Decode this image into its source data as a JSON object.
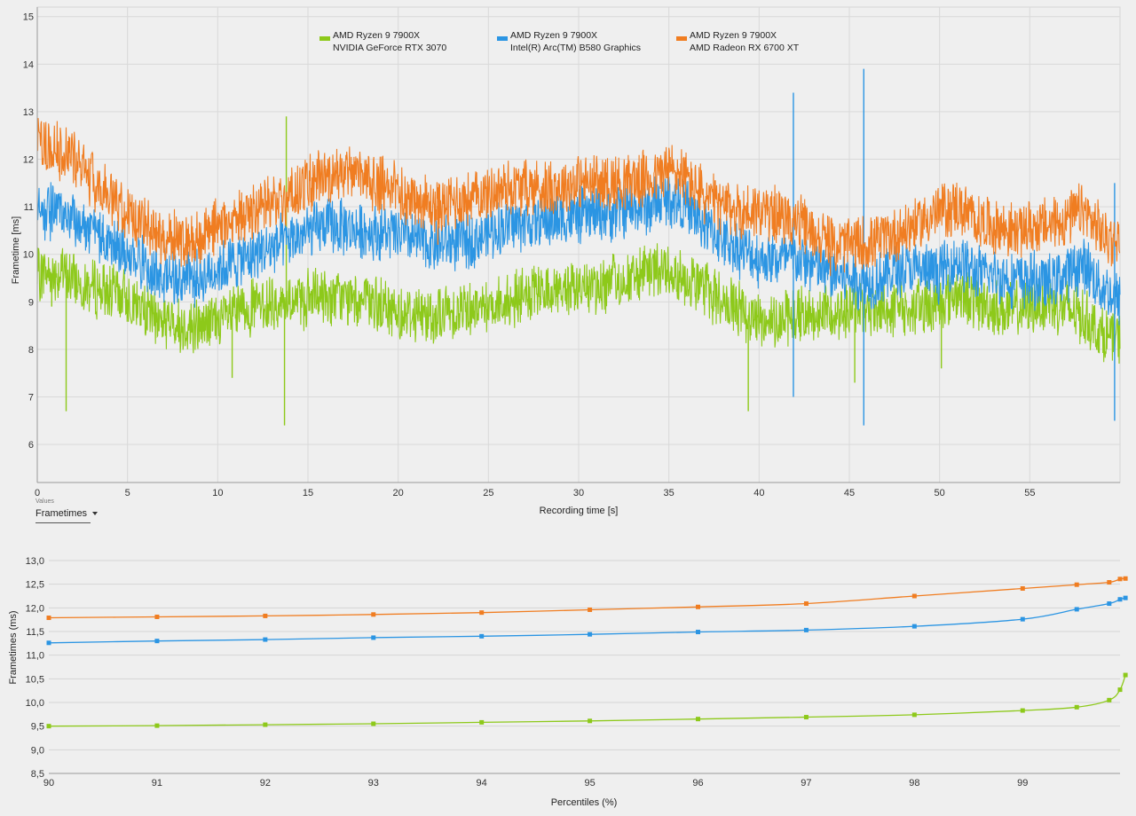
{
  "chart_data": [
    {
      "type": "line",
      "title": "",
      "xlabel": "Recording time [s]",
      "ylabel": "Frametime [ms]",
      "xlim": [
        0,
        60
      ],
      "ylim": [
        5.2,
        15.2
      ],
      "xticks": [
        "0",
        "5",
        "10",
        "15",
        "20",
        "25",
        "30",
        "35",
        "40",
        "45",
        "50",
        "55"
      ],
      "yticks": [
        "6",
        "7",
        "8",
        "9",
        "10",
        "11",
        "12",
        "13",
        "14",
        "15"
      ],
      "grid": true,
      "legend_position": "top-center",
      "series": [
        {
          "name": "AMD Ryzen 9 7900X\nNVIDIA GeForce RTX 3070",
          "line1": "AMD Ryzen 9 7900X",
          "line2": "NVIDIA GeForce RTX 3070",
          "color": "#8dc91a",
          "x": [
            0,
            1,
            2,
            3,
            4,
            5,
            6,
            7,
            8,
            9,
            10,
            12,
            14,
            16,
            18,
            20,
            22,
            24,
            26,
            28,
            30,
            32,
            34,
            35,
            36,
            37,
            38,
            39,
            40,
            42,
            44,
            46,
            48,
            50,
            51,
            52,
            54,
            56,
            58,
            59,
            60
          ],
          "y": [
            9.6,
            9.6,
            9.5,
            9.3,
            9.2,
            9.1,
            8.8,
            8.6,
            8.5,
            8.5,
            8.6,
            8.9,
            9.0,
            9.1,
            9.0,
            8.8,
            8.7,
            8.9,
            9.0,
            9.2,
            9.3,
            9.4,
            9.6,
            9.7,
            9.5,
            9.3,
            9.0,
            8.8,
            8.6,
            8.7,
            8.8,
            8.9,
            8.8,
            9.0,
            9.2,
            9.0,
            8.8,
            9.0,
            8.7,
            8.3,
            8.2
          ],
          "spikes": [
            {
              "x": 0.8,
              "y": 8.9
            },
            {
              "x": 1.6,
              "y": 6.7
            },
            {
              "x": 10.8,
              "y": 7.4
            },
            {
              "x": 13.7,
              "y": 6.4
            },
            {
              "x": 13.8,
              "y": 12.9
            },
            {
              "x": 39.4,
              "y": 6.7
            },
            {
              "x": 45.3,
              "y": 7.3
            },
            {
              "x": 50.1,
              "y": 7.6
            }
          ]
        },
        {
          "name": "AMD Ryzen 9 7900X\nIntel(R) Arc(TM) B580 Graphics",
          "line1": "AMD Ryzen 9 7900X",
          "line2": "Intel(R) Arc(TM) B580 Graphics",
          "color": "#2b95e3",
          "x": [
            0,
            1,
            2,
            3,
            4,
            5,
            6,
            7,
            8,
            9,
            10,
            12,
            14,
            16,
            18,
            20,
            22,
            24,
            26,
            28,
            30,
            32,
            34,
            35,
            36,
            37,
            38,
            39,
            40,
            42,
            44,
            46,
            48,
            50,
            51,
            52,
            54,
            56,
            58,
            59,
            60
          ],
          "y": [
            10.9,
            10.9,
            10.7,
            10.5,
            10.2,
            10.1,
            9.8,
            9.6,
            9.5,
            9.5,
            9.7,
            10.0,
            10.3,
            10.6,
            10.5,
            10.4,
            10.2,
            10.3,
            10.6,
            10.7,
            10.8,
            10.9,
            11.0,
            11.2,
            11.0,
            10.6,
            10.3,
            10.1,
            9.9,
            9.9,
            9.6,
            9.4,
            9.7,
            9.6,
            9.9,
            9.6,
            9.5,
            9.4,
            9.8,
            9.3,
            9.0
          ],
          "spikes": [
            {
              "x": 41.9,
              "y": 7.0
            },
            {
              "x": 41.9,
              "y": 13.4
            },
            {
              "x": 45.8,
              "y": 6.4
            },
            {
              "x": 45.8,
              "y": 13.9
            },
            {
              "x": 59.7,
              "y": 6.5
            },
            {
              "x": 59.7,
              "y": 11.5
            }
          ]
        },
        {
          "name": "AMD Ryzen 9 7900X\nAMD Radeon RX 6700 XT",
          "line1": "AMD Ryzen 9 7900X",
          "line2": "AMD Radeon RX 6700 XT",
          "color": "#f07d21",
          "x": [
            0,
            1,
            2,
            3,
            4,
            5,
            6,
            7,
            8,
            9,
            10,
            12,
            14,
            16,
            18,
            20,
            22,
            24,
            26,
            28,
            30,
            32,
            34,
            35,
            36,
            37,
            38,
            39,
            40,
            42,
            44,
            46,
            48,
            50,
            51,
            52,
            54,
            56,
            58,
            59,
            60
          ],
          "y": [
            12.3,
            12.2,
            12.0,
            11.6,
            11.2,
            10.9,
            10.6,
            10.4,
            10.3,
            10.4,
            10.6,
            10.9,
            11.2,
            11.7,
            11.6,
            11.3,
            11.0,
            11.2,
            11.4,
            11.4,
            11.5,
            11.5,
            11.6,
            11.8,
            11.6,
            11.2,
            11.0,
            10.9,
            10.9,
            10.7,
            10.2,
            10.2,
            10.5,
            10.9,
            11.0,
            10.7,
            10.5,
            10.6,
            10.9,
            10.4,
            10.3
          ],
          "spikes": [
            {
              "x": 22.2,
              "y": 10.2
            }
          ]
        }
      ]
    },
    {
      "type": "line",
      "title": "",
      "xlabel": "Percentiles (%)",
      "ylabel": "Frametimes (ms)",
      "xlim": [
        90,
        99.9
      ],
      "ylim": [
        8.5,
        13.0
      ],
      "xticks": [
        "90",
        "91",
        "92",
        "93",
        "94",
        "95",
        "96",
        "97",
        "98",
        "99"
      ],
      "yticks": [
        "8,5",
        "9,0",
        "9,5",
        "10,0",
        "10,5",
        "11,0",
        "11,5",
        "12,0",
        "12,5",
        "13,0"
      ],
      "grid": true,
      "x": [
        90,
        91,
        92,
        93,
        94,
        95,
        96,
        97,
        98,
        99,
        99.5,
        99.8,
        99.9,
        99.95
      ],
      "series": [
        {
          "name": "AMD Ryzen 9 7900X\nNVIDIA GeForce RTX 3070",
          "color": "#8dc91a",
          "values": [
            9.5,
            9.51,
            9.53,
            9.55,
            9.58,
            9.61,
            9.65,
            9.69,
            9.74,
            9.83,
            9.9,
            10.05,
            10.27,
            10.58
          ]
        },
        {
          "name": "AMD Ryzen 9 7900X\nIntel(R) Arc(TM) B580 Graphics",
          "color": "#2b95e3",
          "values": [
            11.26,
            11.3,
            11.33,
            11.37,
            11.4,
            11.44,
            11.49,
            11.53,
            11.61,
            11.76,
            11.97,
            12.09,
            12.18,
            12.21
          ]
        },
        {
          "name": "AMD Ryzen 9 7900X\nAMD Radeon RX 6700 XT",
          "color": "#f07d21",
          "values": [
            11.79,
            11.81,
            11.83,
            11.86,
            11.9,
            11.96,
            12.02,
            12.09,
            12.25,
            12.41,
            12.49,
            12.54,
            12.61,
            12.62
          ]
        }
      ]
    }
  ],
  "values_control": {
    "caption": "Values",
    "selected": "Frametimes"
  }
}
